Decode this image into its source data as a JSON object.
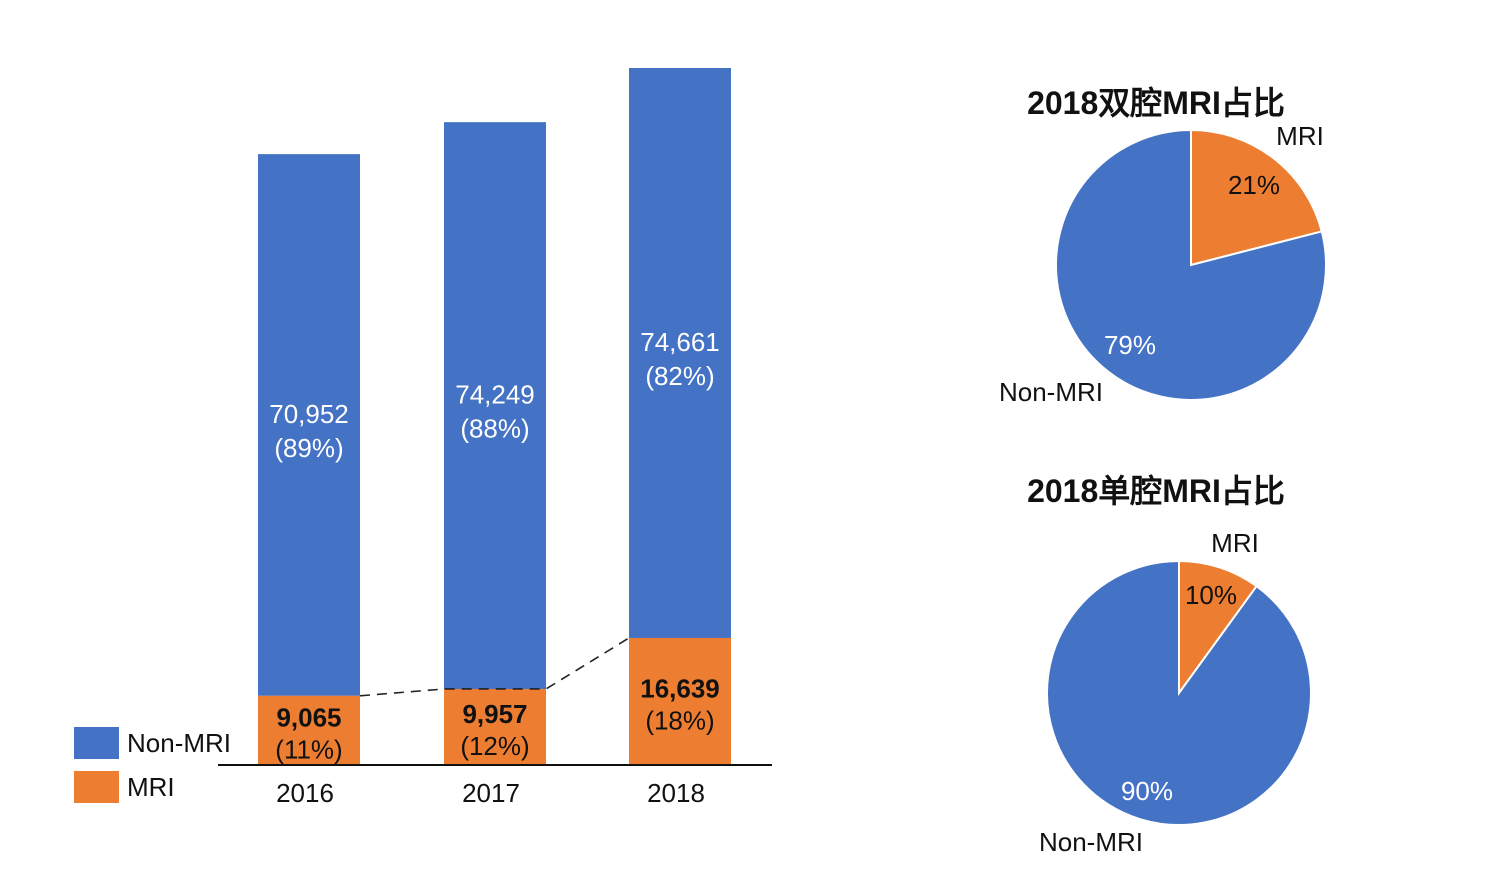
{
  "colors": {
    "non_mri": "#4472C4",
    "mri": "#ED7D31",
    "axis": "#111111",
    "text": "#111111"
  },
  "chart_data": [
    {
      "type": "bar",
      "stacked": true,
      "title": "",
      "categories": [
        "2016",
        "2017",
        "2018"
      ],
      "series": [
        {
          "name": "MRI",
          "values": [
            9065,
            9957,
            16639
          ],
          "labels": [
            "9,065",
            "9,957",
            "16,639"
          ],
          "percent_labels": [
            "(11%)",
            "(12%)",
            "(18%)"
          ]
        },
        {
          "name": "Non-MRI",
          "values": [
            70952,
            74249,
            74661
          ],
          "labels": [
            "70,952",
            "74,249",
            "74,661"
          ],
          "percent_labels": [
            "(89%)",
            "(88%)",
            "(82%)"
          ]
        }
      ],
      "legend": [
        "Non-MRI",
        "MRI"
      ],
      "legend_position": "bottom-left",
      "trend_line": "dashed line connecting MRI segment tops",
      "xlabel": "",
      "ylabel": "",
      "ylim": [
        0,
        91300
      ]
    },
    {
      "type": "pie",
      "title": "2018双腔MRI占比",
      "slices": [
        {
          "name": "MRI",
          "value": 21,
          "label": "21%"
        },
        {
          "name": "Non-MRI",
          "value": 79,
          "label": "79%"
        }
      ]
    },
    {
      "type": "pie",
      "title": "2018单腔MRI占比",
      "slices": [
        {
          "name": "MRI",
          "value": 10,
          "label": "10%"
        },
        {
          "name": "Non-MRI",
          "value": 90,
          "label": "90%"
        }
      ]
    }
  ]
}
